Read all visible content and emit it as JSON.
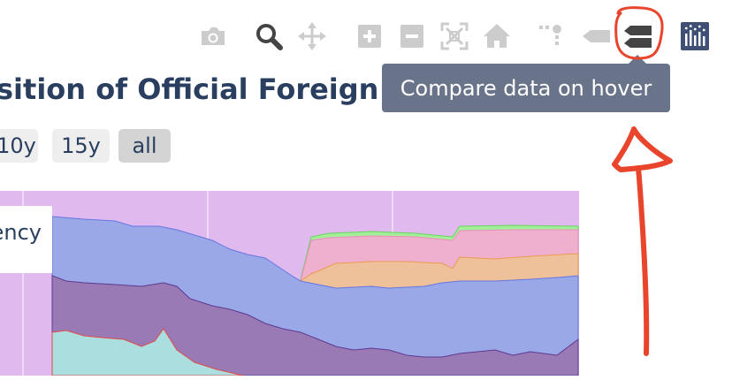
{
  "modebar": {
    "buttons": [
      {
        "icon": "camera-icon",
        "title": "Download plot as a png"
      },
      {
        "icon": "zoom-icon",
        "title": "Zoom"
      },
      {
        "icon": "pan-icon",
        "title": "Pan"
      },
      {
        "icon": "zoom-in-icon",
        "title": "Zoom in"
      },
      {
        "icon": "zoom-out-icon",
        "title": "Zoom out"
      },
      {
        "icon": "autoscale-icon",
        "title": "Autoscale"
      },
      {
        "icon": "home-icon",
        "title": "Reset axes"
      },
      {
        "icon": "spike-lines-icon",
        "title": "Toggle Spike Lines"
      },
      {
        "icon": "hover-closest-icon",
        "title": "Show closest data on hover"
      },
      {
        "icon": "hover-compare-icon",
        "title": "Compare data on hover"
      },
      {
        "icon": "plotly-logo-icon",
        "title": "Produced with Plotly"
      }
    ],
    "icon_color": "#cccccc",
    "active_color": "#444444",
    "logo_color": "#3f4f75"
  },
  "title": {
    "text": "sition of Official Foreign"
  },
  "range_selector": {
    "buttons": [
      {
        "label": "10y",
        "active": false
      },
      {
        "label": "15y",
        "active": false
      },
      {
        "label": "all",
        "active": true
      }
    ]
  },
  "legend": {
    "visible_text": "ency"
  },
  "tooltip": {
    "text": "Compare data on hover"
  },
  "annotation": {
    "color": "#e8452c"
  },
  "chart_data": {
    "type": "area",
    "stacked": true,
    "series_colors": [
      "#abdfdf",
      "#9a7ab5",
      "#9aa8e8",
      "#eec19a",
      "#eeb0cd",
      "#a3ee99",
      "#e0baef"
    ],
    "grid": true
  }
}
